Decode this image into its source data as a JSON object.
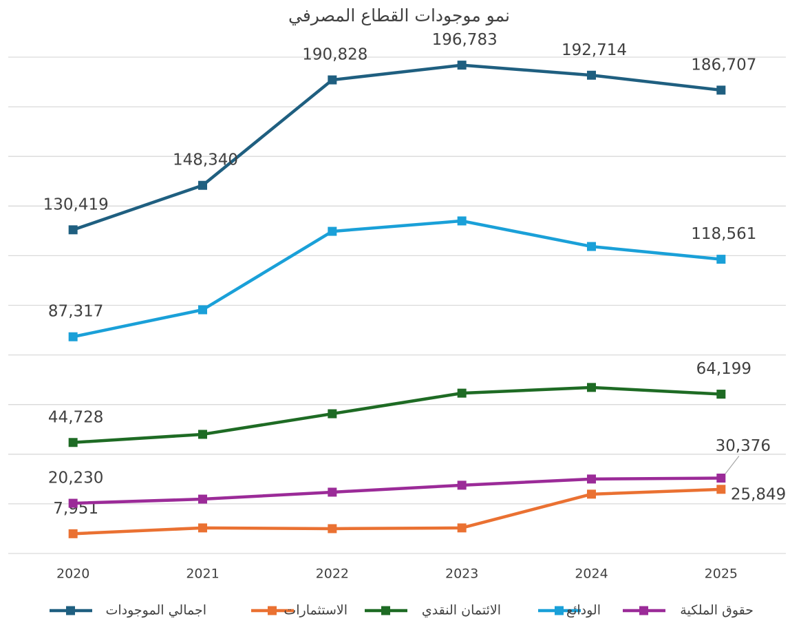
{
  "chart_data": {
    "type": "line",
    "title": "نمو موجودات القطاع المصرفي",
    "categories": [
      "2020",
      "2021",
      "2022",
      "2023",
      "2024",
      "2025"
    ],
    "ylim": [
      0,
      200000
    ],
    "yticks": [
      0,
      20000,
      40000,
      60000,
      80000,
      100000,
      120000,
      140000,
      160000,
      180000,
      200000
    ],
    "grid": true,
    "legend": "bottom",
    "series": [
      {
        "name": "اجمالي الموجودات",
        "color": "#1f5f80",
        "values": [
          130419,
          148340,
          190828,
          196783,
          192714,
          186707
        ],
        "value_labels": [
          "130,419",
          "148,340",
          "190,828",
          "196,783",
          "192,714",
          "186,707"
        ]
      },
      {
        "name": "الاستثمارات",
        "color": "#ea7132",
        "values": [
          7951,
          10300,
          10000,
          10300,
          23900,
          25849
        ],
        "value_labels": [
          "7,951",
          null,
          null,
          null,
          null,
          "25,849"
        ]
      },
      {
        "name": "الائتمان النقدي",
        "color": "#1e6b24",
        "values": [
          44728,
          48000,
          56300,
          64600,
          66900,
          64199
        ],
        "value_labels": [
          "44,728",
          null,
          null,
          null,
          null,
          "64,199"
        ]
      },
      {
        "name": "الودائع",
        "color": "#1aa0d8",
        "values": [
          87317,
          98200,
          129800,
          134000,
          123700,
          118561
        ],
        "value_labels": [
          "87,317",
          null,
          null,
          null,
          null,
          "118,561"
        ]
      },
      {
        "name": "حقوق الملكية",
        "color": "#9b2b98",
        "values": [
          20230,
          21900,
          24700,
          27500,
          30000,
          30376
        ],
        "value_labels": [
          "20,230",
          null,
          null,
          null,
          null,
          "30,376"
        ]
      }
    ]
  }
}
